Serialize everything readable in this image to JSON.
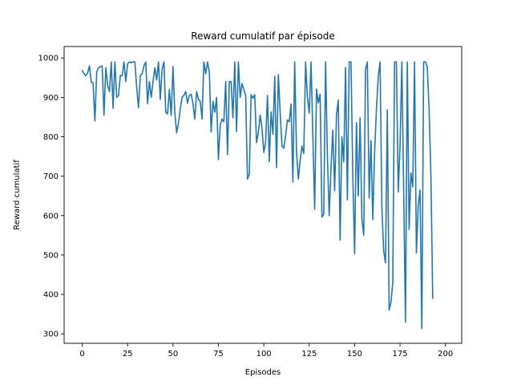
{
  "chart_data": {
    "type": "line",
    "title": "Reward cumulatif par épisode",
    "xlabel": "Episodes",
    "ylabel": "Reward cumulatif",
    "xlim": [
      -9.95,
      208.95
    ],
    "ylim": [
      276,
      1029
    ],
    "xticks": [
      0,
      25,
      50,
      75,
      100,
      125,
      150,
      175,
      200
    ],
    "yticks": [
      300,
      400,
      500,
      600,
      700,
      800,
      900,
      1000
    ],
    "grid": false,
    "legend": "none",
    "color": "#1f77b4",
    "series": [
      {
        "x_start": 0,
        "values": [
          968,
          960,
          955,
          962,
          980,
          938,
          937,
          840,
          965,
          975,
          978,
          980,
          855,
          975,
          930,
          915,
          990,
          872,
          990,
          900,
          905,
          955,
          955,
          990,
          940,
          985,
          990,
          988,
          990,
          990,
          925,
          874,
          955,
          960,
          980,
          990,
          884,
          940,
          900,
          940,
          975,
          944,
          990,
          895,
          972,
          990,
          862,
          858,
          920,
          854,
          978,
          860,
          810,
          835,
          870,
          900,
          905,
          915,
          885,
          905,
          908,
          884,
          845,
          915,
          895,
          890,
          845,
          990,
          960,
          990,
          965,
          812,
          890,
          862,
          900,
          742,
          830,
          845,
          838,
          940,
          755,
          940,
          940,
          848,
          990,
          813,
          990,
          900,
          935,
          920,
          905,
          693,
          705,
          907,
          898,
          907,
          785,
          812,
          855,
          822,
          760,
          787,
          905,
          737,
          863,
          806,
          953,
          722,
          958,
          862,
          777,
          771,
          802,
          843,
          838,
          883,
          685,
          990,
          762,
          693,
          740,
          776,
          758,
          990,
          900,
          860,
          990,
          803,
          616,
          921,
          886,
          908,
          596,
          604,
          990,
          753,
          600,
          723,
          817,
          663,
          855,
          893,
          538,
          800,
          736,
          976,
          640,
          990,
          990,
          700,
          503,
          836,
          650,
          848,
          590,
          550,
          970,
          990,
          645,
          790,
          590,
          760,
          870,
          952,
          990,
          620,
          510,
          480,
          868,
          360,
          380,
          430,
          990,
          990,
          660,
          776,
          990,
          665,
          330,
          990,
          565,
          708,
          673,
          990,
          505,
          625,
          665,
          313,
          990,
          990,
          978,
          870,
          700,
          390
        ]
      }
    ]
  }
}
